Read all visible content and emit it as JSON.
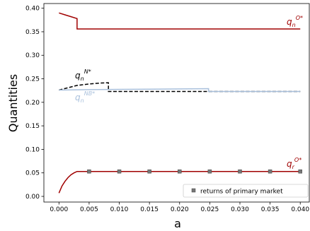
{
  "chart_data": {
    "type": "line",
    "xlabel": "a",
    "ylabel": "Quantities",
    "xlim": [
      -0.0025,
      0.0415
    ],
    "ylim": [
      -0.012,
      0.41
    ],
    "x_ticks": [
      0.0,
      0.005,
      0.01,
      0.015,
      0.02,
      0.025,
      0.03,
      0.035,
      0.04
    ],
    "x_tick_labels": [
      "0.000",
      "0.005",
      "0.010",
      "0.015",
      "0.020",
      "0.025",
      "0.030",
      "0.035",
      "0.040"
    ],
    "y_ticks": [
      0.0,
      0.05,
      0.1,
      0.15,
      0.2,
      0.25,
      0.3,
      0.35,
      0.4
    ],
    "y_tick_labels": [
      "0.00",
      "0.05",
      "0.10",
      "0.15",
      "0.20",
      "0.25",
      "0.30",
      "0.35",
      "0.40"
    ],
    "grid": false,
    "legend_position": "lower-right",
    "series": [
      {
        "label_base": "q",
        "label_sub": "n",
        "label_sup": "O*",
        "color": "#a00000",
        "dash": "solid",
        "points": [
          [
            0.0,
            0.39
          ],
          [
            0.001,
            0.386
          ],
          [
            0.002,
            0.382
          ],
          [
            0.003,
            0.378
          ],
          [
            0.003,
            0.356
          ],
          [
            0.04,
            0.356
          ]
        ]
      },
      {
        "label_base": "q",
        "label_sub": "n",
        "label_sup": "N*",
        "color": "#000000",
        "dash": "dashed",
        "points": [
          [
            0.0,
            0.226
          ],
          [
            0.0015,
            0.231
          ],
          [
            0.003,
            0.236
          ],
          [
            0.005,
            0.239
          ],
          [
            0.007,
            0.241
          ],
          [
            0.0082,
            0.2415
          ],
          [
            0.0082,
            0.223
          ],
          [
            0.04,
            0.223
          ]
        ]
      },
      {
        "label_base": "q",
        "label_sub": "n",
        "label_sup": "NB*",
        "color": "#a9c0dc",
        "dash": "solid",
        "points": [
          [
            0.0,
            0.226
          ],
          [
            0.005,
            0.227
          ],
          [
            0.01,
            0.2275
          ],
          [
            0.015,
            0.228
          ],
          [
            0.02,
            0.2285
          ],
          [
            0.0248,
            0.229
          ],
          [
            0.0248,
            0.223
          ],
          [
            0.04,
            0.223
          ]
        ]
      },
      {
        "label_base": "q",
        "label_sub": "r",
        "label_sup": "O*",
        "color": "#a00000",
        "dash": "solid",
        "points": [
          [
            0.0,
            0.007
          ],
          [
            0.0005,
            0.022
          ],
          [
            0.001,
            0.032
          ],
          [
            0.0015,
            0.04
          ],
          [
            0.002,
            0.046
          ],
          [
            0.0025,
            0.05
          ],
          [
            0.003,
            0.053
          ],
          [
            0.04,
            0.053
          ]
        ]
      }
    ],
    "markers": {
      "name": "returns of primary market",
      "color": "#777777",
      "x": [
        0.005,
        0.01,
        0.015,
        0.02,
        0.025,
        0.03,
        0.035,
        0.04
      ],
      "y": [
        0.053,
        0.053,
        0.053,
        0.053,
        0.053,
        0.053,
        0.053,
        0.053
      ]
    }
  }
}
